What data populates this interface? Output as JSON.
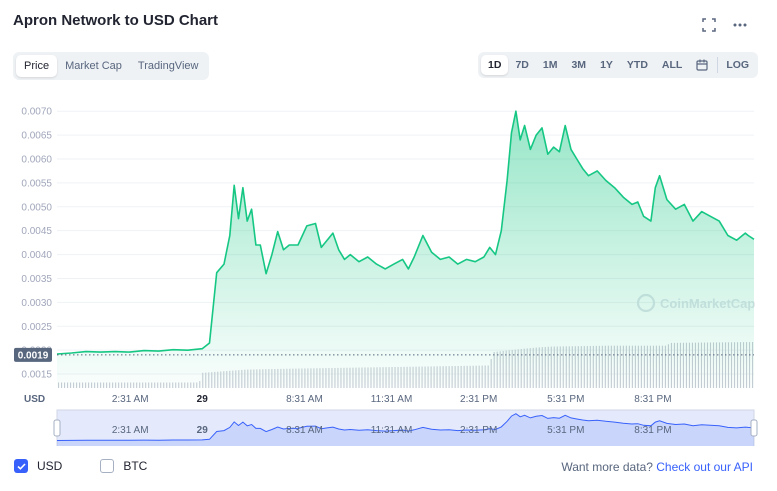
{
  "page": {
    "title": "Apron Network to USD Chart",
    "icons": {
      "fullscreen": "fullscreen-icon",
      "more": "more-horizontal-icon"
    }
  },
  "tabs_left": [
    {
      "label": "Price",
      "active": true
    },
    {
      "label": "Market Cap",
      "active": false
    },
    {
      "label": "TradingView",
      "active": false
    }
  ],
  "tabs_right": [
    {
      "label": "1D",
      "active": true
    },
    {
      "label": "7D",
      "active": false
    },
    {
      "label": "1M",
      "active": false
    },
    {
      "label": "3M",
      "active": false
    },
    {
      "label": "1Y",
      "active": false
    },
    {
      "label": "YTD",
      "active": false
    },
    {
      "label": "ALL",
      "active": false
    }
  ],
  "log_label": "LOG",
  "watermark": "CoinMarketCap",
  "currency_toggles": [
    {
      "label": "USD",
      "checked": true
    },
    {
      "label": "BTC",
      "checked": false
    }
  ],
  "api_note": {
    "text": "Want more data?",
    "link": "Check out our API"
  },
  "colors": {
    "line": "#16c784",
    "accent": "#3861fb",
    "grid": "#eff2f5",
    "current_price_badge": "#58667e",
    "navigator_line": "#3861fb"
  },
  "chart_data": {
    "type": "area",
    "title": "Apron Network to USD Chart",
    "ylabel": "USD",
    "ylim": [
      0.00125,
      0.00713
    ],
    "yticks": [
      "0.0015",
      "0.0020",
      "0.0025",
      "0.0030",
      "0.0035",
      "0.0040",
      "0.0045",
      "0.0050",
      "0.0055",
      "0.0060",
      "0.0065",
      "0.0070"
    ],
    "current_price_label": "0.0019",
    "current_price": 0.0019,
    "xlim": [
      0,
      24
    ],
    "xticks": [
      {
        "label": "2:31 AM",
        "x": 2.52,
        "bold": false
      },
      {
        "label": "29",
        "x": 5.0,
        "bold": true
      },
      {
        "label": "8:31 AM",
        "x": 8.52,
        "bold": false
      },
      {
        "label": "11:31 AM",
        "x": 11.52,
        "bold": false
      },
      {
        "label": "2:31 PM",
        "x": 14.52,
        "bold": false
      },
      {
        "label": "5:31 PM",
        "x": 17.52,
        "bold": false
      },
      {
        "label": "8:31 PM",
        "x": 20.52,
        "bold": false
      }
    ],
    "series": [
      {
        "x": [
          0.0,
          0.5,
          1.0,
          1.5,
          2.0,
          2.5,
          3.0,
          3.5,
          4.0,
          4.5,
          5.0,
          5.25,
          5.5,
          5.75,
          5.95,
          6.1,
          6.25,
          6.4,
          6.55,
          6.7,
          6.85,
          7.0,
          7.2,
          7.4,
          7.6,
          7.8,
          8.0,
          8.3,
          8.6,
          8.9,
          9.1,
          9.3,
          9.5,
          9.7,
          9.9,
          10.1,
          10.4,
          10.7,
          11.0,
          11.3,
          11.6,
          11.9,
          12.1,
          12.3,
          12.6,
          12.9,
          13.2,
          13.5,
          13.8,
          14.1,
          14.4,
          14.7,
          14.9,
          15.1,
          15.3,
          15.5,
          15.65,
          15.8,
          15.95,
          16.1,
          16.3,
          16.5,
          16.7,
          16.9,
          17.1,
          17.3,
          17.5,
          17.7,
          17.9,
          18.1,
          18.3,
          18.6,
          18.9,
          19.2,
          19.5,
          19.8,
          20.0,
          20.2,
          20.45,
          20.6,
          20.75,
          21.0,
          21.3,
          21.6,
          21.9,
          22.2,
          22.5,
          22.8,
          23.1,
          23.4,
          23.7,
          23.8,
          24.0
        ],
        "values": [
          0.00192,
          0.00194,
          0.00197,
          0.00196,
          0.00197,
          0.00196,
          0.00199,
          0.00198,
          0.00201,
          0.002,
          0.00203,
          0.00215,
          0.00362,
          0.0038,
          0.0044,
          0.00545,
          0.00475,
          0.0054,
          0.0047,
          0.00495,
          0.0042,
          0.0042,
          0.0036,
          0.004,
          0.00448,
          0.0041,
          0.0042,
          0.0042,
          0.0046,
          0.00465,
          0.00415,
          0.0043,
          0.00445,
          0.0041,
          0.0039,
          0.004,
          0.00385,
          0.00395,
          0.0038,
          0.0037,
          0.0038,
          0.0039,
          0.0037,
          0.00395,
          0.0044,
          0.00405,
          0.0039,
          0.00395,
          0.0038,
          0.0039,
          0.00385,
          0.00395,
          0.00415,
          0.004,
          0.0045,
          0.00555,
          0.00655,
          0.007,
          0.0064,
          0.0067,
          0.0062,
          0.0065,
          0.00665,
          0.0061,
          0.00625,
          0.00615,
          0.0067,
          0.0062,
          0.006,
          0.0058,
          0.00565,
          0.00575,
          0.00555,
          0.0054,
          0.0052,
          0.00505,
          0.0051,
          0.0048,
          0.0047,
          0.0054,
          0.00565,
          0.00515,
          0.00495,
          0.00505,
          0.0047,
          0.0049,
          0.0048,
          0.0047,
          0.0044,
          0.0043,
          0.00445,
          0.0044,
          0.00432
        ]
      }
    ],
    "volume": {
      "x": [
        0,
        4.9,
        5.0,
        6.5,
        8.0,
        10.0,
        12.0,
        13.0,
        14.9,
        15.0,
        16.0,
        16.5,
        17.0,
        19.0,
        21.0,
        21.1,
        24.0
      ],
      "values": [
        0.12,
        0.12,
        0.33,
        0.4,
        0.42,
        0.44,
        0.46,
        0.47,
        0.49,
        0.78,
        0.85,
        0.88,
        0.9,
        0.92,
        0.92,
        0.98,
        1.0
      ]
    },
    "grid": true
  }
}
